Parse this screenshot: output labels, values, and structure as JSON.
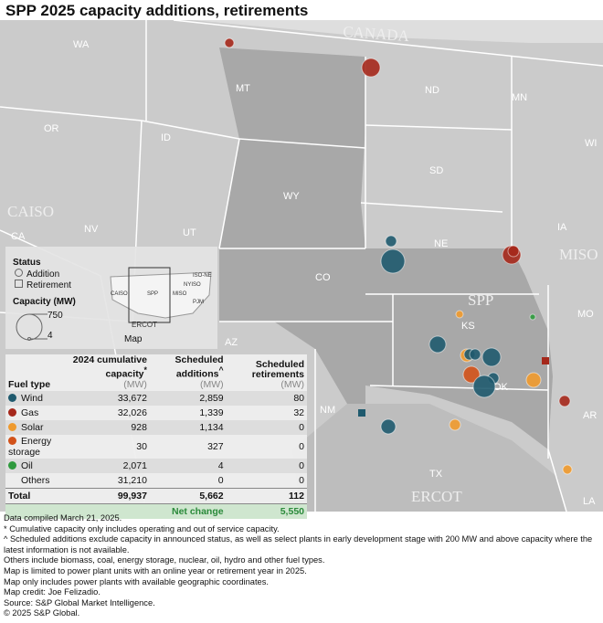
{
  "title": "SPP 2025 capacity additions, retirements",
  "map": {
    "country_label": "CANADA",
    "states": [
      "WA",
      "MT",
      "ND",
      "MN",
      "WI",
      "OR",
      "ID",
      "SD",
      "WY",
      "IA",
      "NV",
      "NE",
      "UT",
      "CO",
      "KS",
      "MO",
      "CA",
      "OK",
      "AZ",
      "NM",
      "AR",
      "TX",
      "LA"
    ],
    "isos": [
      "SPP",
      "MISO",
      "CAISO",
      "ERCOT"
    ],
    "colors": {
      "wind": "#1f5a6e",
      "gas": "#a5281b",
      "solar": "#ef9a2e",
      "storage": "#d2521a",
      "oil": "#2f9a3e"
    }
  },
  "legend": {
    "status_title": "Status",
    "addition": "Addition",
    "retirement": "Retirement",
    "capacity_title": "Capacity (MW)",
    "cap_max": "750",
    "cap_min": "4",
    "inset_label": "Map",
    "inset_isos": [
      "CAISO",
      "SPP",
      "MISO",
      "PJM",
      "NYISO",
      "ISO-NE",
      "ERCOT"
    ]
  },
  "table": {
    "headers": {
      "fuel": "Fuel type",
      "cum": "2024 cumulative capacity",
      "add": "Scheduled additions",
      "ret": "Scheduled retirements",
      "unit": "(MW)",
      "mark": "*",
      "mark2": "^"
    },
    "rows": [
      {
        "fuel": "Wind",
        "color": "#1f5a6e",
        "cum": "33,672",
        "add": "2,859",
        "ret": "80"
      },
      {
        "fuel": "Gas",
        "color": "#a5281b",
        "cum": "32,026",
        "add": "1,339",
        "ret": "32"
      },
      {
        "fuel": "Solar",
        "color": "#ef9a2e",
        "cum": "928",
        "add": "1,134",
        "ret": "0"
      },
      {
        "fuel": "Energy storage",
        "color": "#d2521a",
        "cum": "30",
        "add": "327",
        "ret": "0"
      },
      {
        "fuel": "Oil",
        "color": "#2f9a3e",
        "cum": "2,071",
        "add": "4",
        "ret": "0"
      },
      {
        "fuel": "Others",
        "color": "",
        "cum": "31,210",
        "add": "0",
        "ret": "0"
      }
    ],
    "total": {
      "label": "Total",
      "cum": "99,937",
      "add": "5,662",
      "ret": "112"
    },
    "net": {
      "label": "Net change",
      "value": "5,550"
    }
  },
  "notes": [
    "Data compiled March 21, 2025.",
    "* Cumulative capacity only includes operating and out of service capacity.",
    "^ Scheduled additions exclude capacity in announced status, as well as select plants in early development stage with 200 MW and above capacity where the latest information is not available.",
    "Others include biomass, coal, energy storage, nuclear, oil, hydro and other fuel types.",
    "Map is limited to power plant units with an online year or retirement year in 2025.",
    "Map only includes power plants with available geographic coordinates.",
    "Map credit: Joe Felizadio.",
    "Source: S&P Global Market Intelligence.",
    "© 2025 S&P Global."
  ]
}
